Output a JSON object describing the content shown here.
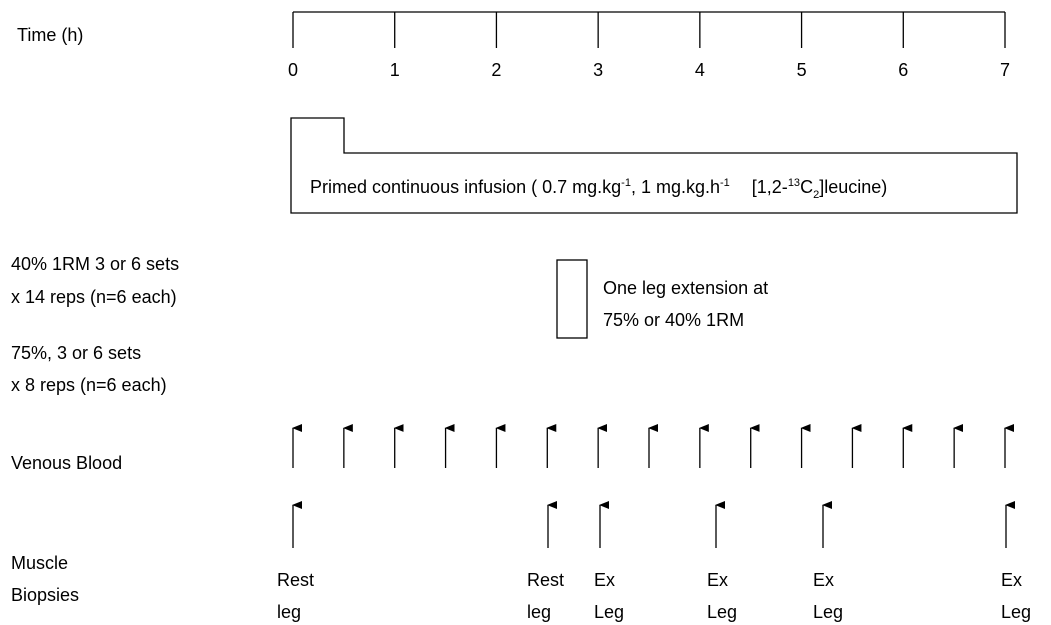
{
  "time_axis": {
    "label": "Time (h)",
    "ticks": [
      0,
      1,
      2,
      3,
      4,
      5,
      6,
      7
    ]
  },
  "infusion": {
    "parts": [
      "Primed continuous infusion ( 0.7 mg.kg",
      "-1",
      ", 1 mg.kg.h",
      "-1",
      "[1,2-",
      "13",
      "C",
      "2",
      "]leucine)"
    ]
  },
  "protocol_notes": [
    "40% 1RM 3 or 6 sets",
    "x 14 reps (n=6 each)",
    "75%, 3 or 6 sets",
    "x 8 reps (n=6 each)"
  ],
  "exercise": {
    "lines": [
      "One leg extension at",
      "75% or 40% 1RM"
    ]
  },
  "venous_blood": {
    "label": "Venous Blood"
  },
  "muscle_biopsies": {
    "label": [
      "Muscle",
      "Biopsies"
    ],
    "samples": [
      [
        "Rest",
        "leg"
      ],
      [
        "Rest",
        "leg"
      ],
      [
        "Ex",
        "Leg"
      ],
      [
        "Ex",
        "Leg"
      ],
      [
        "Ex",
        "Leg"
      ],
      [
        "Ex",
        "Leg"
      ]
    ]
  }
}
